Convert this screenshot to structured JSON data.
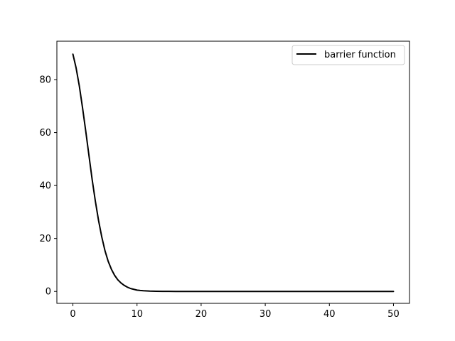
{
  "chart_data": {
    "type": "line",
    "title": "",
    "xlabel": "",
    "ylabel": "",
    "xlim": [
      -2.5,
      52.5
    ],
    "ylim": [
      -4.5,
      94.5
    ],
    "x_ticks": [
      0,
      10,
      20,
      30,
      40,
      50
    ],
    "y_ticks": [
      0,
      20,
      40,
      60,
      80
    ],
    "x_tick_labels": [
      "0",
      "10",
      "20",
      "30",
      "40",
      "50"
    ],
    "y_tick_labels": [
      "0",
      "20",
      "40",
      "60",
      "80"
    ],
    "grid": false,
    "legend": {
      "position": "upper-right",
      "entries": [
        "barrier function"
      ]
    },
    "series": [
      {
        "name": "barrier function",
        "color": "#000000",
        "x": [
          0,
          0.5,
          1,
          1.5,
          2,
          2.5,
          3,
          3.5,
          4,
          4.5,
          5,
          5.5,
          6,
          6.5,
          7,
          7.5,
          8,
          8.5,
          9,
          9.5,
          10,
          10.5,
          11,
          12,
          13,
          14,
          15,
          16,
          17,
          18,
          19,
          20,
          22,
          24,
          26,
          28,
          30,
          35,
          40,
          45,
          50
        ],
        "y": [
          89.6,
          84.4,
          77.6,
          69.4,
          60.6,
          51.4,
          42.3,
          34.1,
          26.8,
          20.6,
          15.4,
          11.4,
          8.4,
          6.1,
          4.4,
          3.2,
          2.3,
          1.6,
          1.1,
          0.8,
          0.5,
          0.35,
          0.25,
          0.12,
          0.06,
          0.03,
          0.015,
          0.008,
          0.004,
          0.002,
          0.001,
          0.0005,
          0.0001,
          0,
          0,
          0,
          0,
          0,
          0,
          0,
          0
        ]
      }
    ]
  }
}
